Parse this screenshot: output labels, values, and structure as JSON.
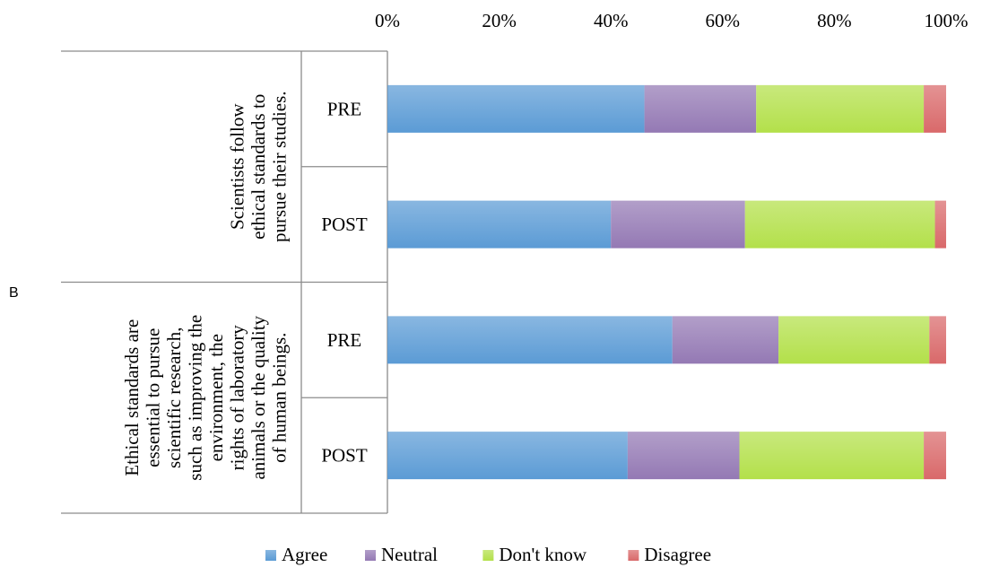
{
  "panel_label": "B",
  "chart_data": {
    "type": "bar",
    "orientation": "horizontal",
    "stacked": "percent",
    "xaxis_position": "top",
    "xlim": [
      0,
      100
    ],
    "xticks": [
      "0%",
      "20%",
      "40%",
      "60%",
      "80%",
      "100%"
    ],
    "grid": false,
    "legend_position": "bottom",
    "groups": [
      {
        "label": "Scientists follow ethical standards to pursue their studies.",
        "label_lines": [
          "Scientists follow",
          "ethical standards to",
          "pursue their studies."
        ],
        "bars": [
          "PRE",
          "POST"
        ]
      },
      {
        "label": "Ethical standards are essential to pursue scientific research, such as improving the environment, the rights of laboratory animals or the quality of human beings.",
        "label_lines": [
          "Ethical standards are",
          "essential to pursue",
          "scientific research,",
          "such as improving the",
          "environment, the",
          "rights of laboratory",
          "animals or the quality",
          "of human beings."
        ],
        "bars": [
          "PRE",
          "POST"
        ]
      }
    ],
    "categories": [
      "PRE",
      "POST",
      "PRE",
      "POST"
    ],
    "series": [
      {
        "name": "Agree",
        "color": "#5B9BD5",
        "values": [
          46,
          40,
          51,
          43
        ]
      },
      {
        "name": "Neutral",
        "color": "#9479B4",
        "values": [
          20,
          24,
          19,
          20
        ]
      },
      {
        "name": "Don't know",
        "color": "#B3E04A",
        "values": [
          30,
          34,
          27,
          33
        ]
      },
      {
        "name": "Disagree",
        "color": "#D9696A",
        "values": [
          4,
          2,
          3,
          4
        ]
      }
    ]
  }
}
